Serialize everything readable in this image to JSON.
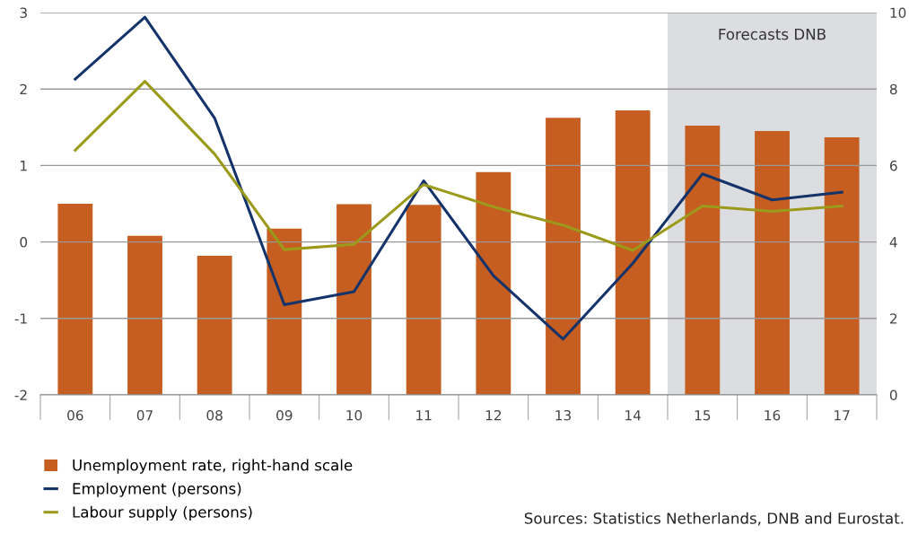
{
  "chart_data": {
    "type": "bar",
    "categories": [
      "06",
      "07",
      "08",
      "09",
      "10",
      "11",
      "12",
      "13",
      "14",
      "15",
      "16",
      "17"
    ],
    "series": [
      {
        "name": "Unemployment rate, right-hand scale",
        "axis": "y2",
        "color": "#c55e20",
        "values": [
          5.0,
          4.16,
          3.64,
          4.35,
          4.99,
          4.97,
          5.83,
          7.25,
          7.44,
          7.04,
          6.9,
          6.74
        ]
      },
      {
        "name": "Employment (persons)",
        "type": "line",
        "color": "#14336b",
        "values": [
          2.13,
          2.94,
          1.62,
          -0.82,
          -0.65,
          0.8,
          -0.44,
          -1.27,
          -0.28,
          0.89,
          0.55,
          0.65
        ]
      },
      {
        "name": "Labour supply (persons)",
        "type": "line",
        "color": "#9c9a1b",
        "values": [
          1.2,
          2.1,
          1.15,
          -0.1,
          -0.03,
          0.75,
          0.46,
          0.22,
          -0.11,
          0.47,
          0.4,
          0.47
        ]
      }
    ],
    "ylim": [
      -2,
      3
    ],
    "yticks": [
      -2,
      -1,
      0,
      1,
      2,
      3
    ],
    "y2lim": [
      0,
      10
    ],
    "y2ticks": [
      0,
      2,
      4,
      6,
      8,
      10
    ],
    "bands": [
      {
        "axis": "x",
        "from": "15",
        "to": "17",
        "label": "Forecasts DNB",
        "color": "#dcdde0"
      }
    ],
    "grid": "y",
    "legend": "bottom left",
    "annotations": [
      "Sources: Statistics Netherlands, DNB and Eurostat."
    ]
  }
}
